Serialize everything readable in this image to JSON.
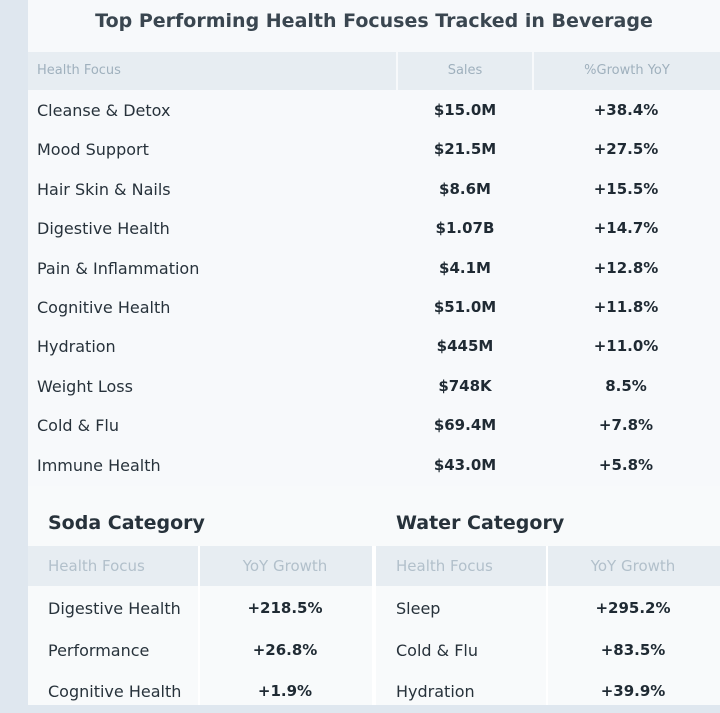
{
  "main_table": {
    "title": "Top Performing Health Focuses Tracked in Beverage",
    "headers": [
      "Health Focus",
      "Sales",
      "%Growth YoY"
    ],
    "rows": [
      {
        "focus": "Cleanse & Detox",
        "sales": "$15.0M",
        "growth": "+38.4%"
      },
      {
        "focus": "Mood Support",
        "sales": "$21.5M",
        "growth": "+27.5%"
      },
      {
        "focus": "Hair Skin & Nails",
        "sales": "$8.6M",
        "growth": "+15.5%"
      },
      {
        "focus": "Digestive Health",
        "sales": "$1.07B",
        "growth": "+14.7%"
      },
      {
        "focus": "Pain & Inflammation",
        "sales": "$4.1M",
        "growth": "+12.8%"
      },
      {
        "focus": "Cognitive Health",
        "sales": "$51.0M",
        "growth": "+11.8%"
      },
      {
        "focus": "Hydration",
        "sales": "$445M",
        "growth": "+11.0%"
      },
      {
        "focus": "Weight Loss",
        "sales": "$748K",
        "growth": "8.5%"
      },
      {
        "focus": "Cold & Flu",
        "sales": "$69.4M",
        "growth": "+7.8%"
      },
      {
        "focus": "Immune Health",
        "sales": "$43.0M",
        "growth": "+5.8%"
      }
    ]
  },
  "soda": {
    "title": "Soda Category",
    "headers": [
      "Health Focus",
      "YoY Growth"
    ],
    "rows": [
      {
        "focus": "Digestive Health",
        "growth": "+218.5%"
      },
      {
        "focus": "Performance",
        "growth": "+26.8%"
      },
      {
        "focus": "Cognitive Health",
        "growth": "+1.9%"
      }
    ]
  },
  "water": {
    "title": "Water Category",
    "headers": [
      "Health Focus",
      "YoY Growth"
    ],
    "rows": [
      {
        "focus": "Sleep",
        "growth": "+295.2%"
      },
      {
        "focus": "Cold & Flu",
        "growth": "+83.5%"
      },
      {
        "focus": "Hydration",
        "growth": "+39.9%"
      }
    ]
  }
}
